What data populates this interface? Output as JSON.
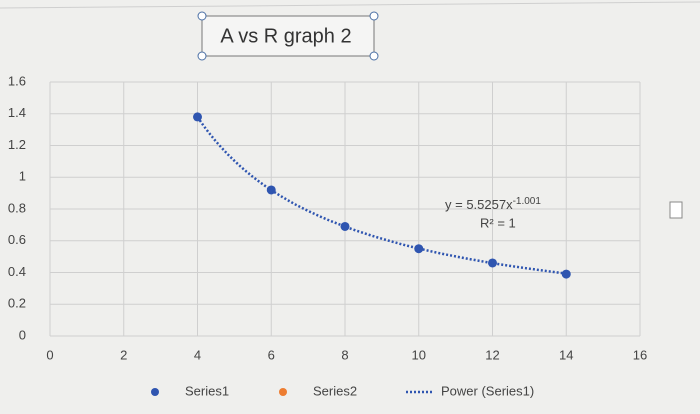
{
  "chart_data": {
    "type": "scatter",
    "title": "A vs R graph 2",
    "x": [
      4,
      6,
      8,
      10,
      12,
      14
    ],
    "series": [
      {
        "name": "Series1",
        "color": "#2f55b0",
        "values": [
          1.38,
          0.92,
          0.69,
          0.55,
          0.46,
          0.39
        ]
      },
      {
        "name": "Series2",
        "color": "#ed7d31",
        "values": [
          null,
          null,
          null,
          null,
          null,
          null
        ]
      }
    ],
    "trendline": {
      "name": "Power (Series1)",
      "color": "#2f55b0",
      "coefficient": 5.5257,
      "exponent": -1.001,
      "equation_labels": [
        "y = 5.5257x",
        "-1.001"
      ],
      "r_squared_label": "R² = 1"
    },
    "xlim": [
      0,
      16
    ],
    "xticks": [
      0,
      2,
      4,
      6,
      8,
      10,
      12,
      14,
      16
    ],
    "ylim": [
      0,
      1.6
    ],
    "yticks": [
      0,
      0.2,
      0.4,
      0.6,
      0.8,
      1,
      1.2,
      1.4,
      1.6
    ],
    "grid": true
  }
}
